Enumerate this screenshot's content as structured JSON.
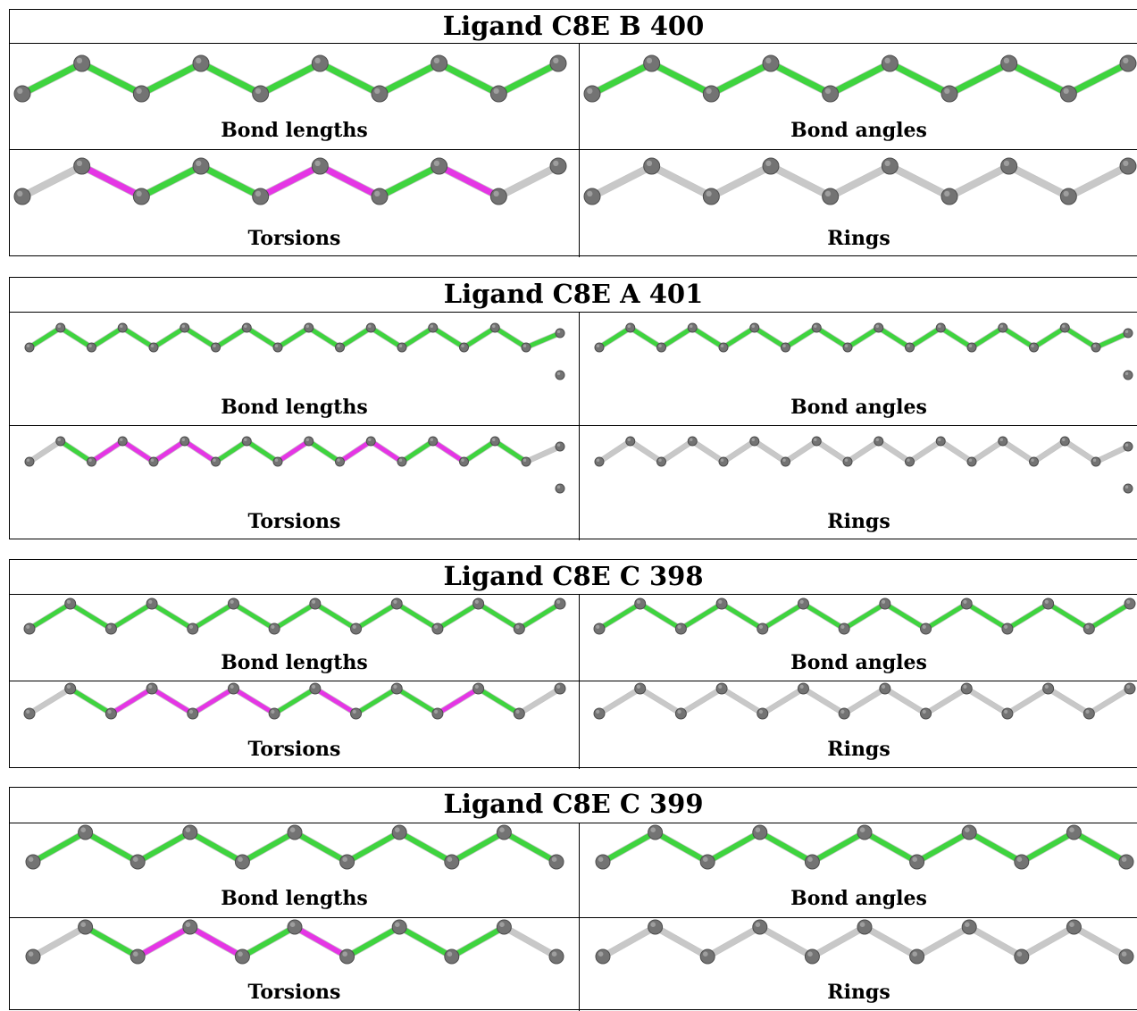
{
  "palette": {
    "ok": "#3ed43e",
    "outlier": "#e535e5",
    "neutral": "#c8c8c8",
    "atom": "#737373"
  },
  "ligands": [
    {
      "title": "Ligand C8E B 400",
      "panels": [
        {
          "label": "Bond lengths",
          "bond_status": [
            "ok",
            "ok",
            "ok",
            "ok",
            "ok",
            "ok",
            "ok",
            "ok",
            "ok"
          ]
        },
        {
          "label": "Bond angles",
          "bond_status": [
            "ok",
            "ok",
            "ok",
            "ok",
            "ok",
            "ok",
            "ok",
            "ok",
            "ok"
          ]
        },
        {
          "label": "Torsions",
          "bond_status": [
            "neutral",
            "outlier",
            "ok",
            "ok",
            "outlier",
            "outlier",
            "ok",
            "outlier",
            "neutral"
          ]
        },
        {
          "label": "Rings",
          "bond_status": [
            "neutral",
            "neutral",
            "neutral",
            "neutral",
            "neutral",
            "neutral",
            "neutral",
            "neutral",
            "neutral"
          ]
        }
      ]
    },
    {
      "title": "Ligand C8E A 401",
      "panels": [
        {
          "label": "Bond lengths",
          "bond_status": [
            "ok",
            "ok",
            "ok",
            "ok",
            "ok",
            "ok",
            "ok",
            "ok",
            "ok",
            "ok",
            "ok",
            "ok",
            "ok",
            "ok",
            "ok",
            "ok",
            "ok"
          ]
        },
        {
          "label": "Bond angles",
          "bond_status": [
            "ok",
            "ok",
            "ok",
            "ok",
            "ok",
            "ok",
            "ok",
            "ok",
            "ok",
            "ok",
            "ok",
            "ok",
            "ok",
            "ok",
            "ok",
            "ok",
            "ok"
          ]
        },
        {
          "label": "Torsions",
          "bond_status": [
            "neutral",
            "ok",
            "outlier",
            "outlier",
            "outlier",
            "outlier",
            "ok",
            "ok",
            "outlier",
            "ok",
            "outlier",
            "outlier",
            "ok",
            "outlier",
            "ok",
            "ok",
            "neutral"
          ]
        },
        {
          "label": "Rings",
          "bond_status": [
            "neutral",
            "neutral",
            "neutral",
            "neutral",
            "neutral",
            "neutral",
            "neutral",
            "neutral",
            "neutral",
            "neutral",
            "neutral",
            "neutral",
            "neutral",
            "neutral",
            "neutral",
            "neutral",
            "neutral"
          ]
        }
      ]
    },
    {
      "title": "Ligand C8E C 398",
      "panels": [
        {
          "label": "Bond lengths",
          "bond_status": [
            "ok",
            "ok",
            "ok",
            "ok",
            "ok",
            "ok",
            "ok",
            "ok",
            "ok",
            "ok",
            "ok",
            "ok",
            "ok"
          ]
        },
        {
          "label": "Bond angles",
          "bond_status": [
            "ok",
            "ok",
            "ok",
            "ok",
            "ok",
            "ok",
            "ok",
            "ok",
            "ok",
            "ok",
            "ok",
            "ok",
            "ok"
          ]
        },
        {
          "label": "Torsions",
          "bond_status": [
            "neutral",
            "ok",
            "outlier",
            "outlier",
            "outlier",
            "outlier",
            "ok",
            "outlier",
            "ok",
            "ok",
            "outlier",
            "ok",
            "neutral"
          ]
        },
        {
          "label": "Rings",
          "bond_status": [
            "neutral",
            "neutral",
            "neutral",
            "neutral",
            "neutral",
            "neutral",
            "neutral",
            "neutral",
            "neutral",
            "neutral",
            "neutral",
            "neutral",
            "neutral"
          ]
        }
      ]
    },
    {
      "title": "Ligand C8E C 399",
      "panels": [
        {
          "label": "Bond lengths",
          "bond_status": [
            "ok",
            "ok",
            "ok",
            "ok",
            "ok",
            "ok",
            "ok",
            "ok",
            "ok",
            "ok"
          ]
        },
        {
          "label": "Bond angles",
          "bond_status": [
            "ok",
            "ok",
            "ok",
            "ok",
            "ok",
            "ok",
            "ok",
            "ok",
            "ok",
            "ok"
          ]
        },
        {
          "label": "Torsions",
          "bond_status": [
            "neutral",
            "ok",
            "outlier",
            "outlier",
            "ok",
            "outlier",
            "ok",
            "ok",
            "ok",
            "neutral"
          ]
        },
        {
          "label": "Rings",
          "bond_status": [
            "neutral",
            "neutral",
            "neutral",
            "neutral",
            "neutral",
            "neutral",
            "neutral",
            "neutral",
            "neutral",
            "neutral"
          ]
        }
      ]
    }
  ]
}
